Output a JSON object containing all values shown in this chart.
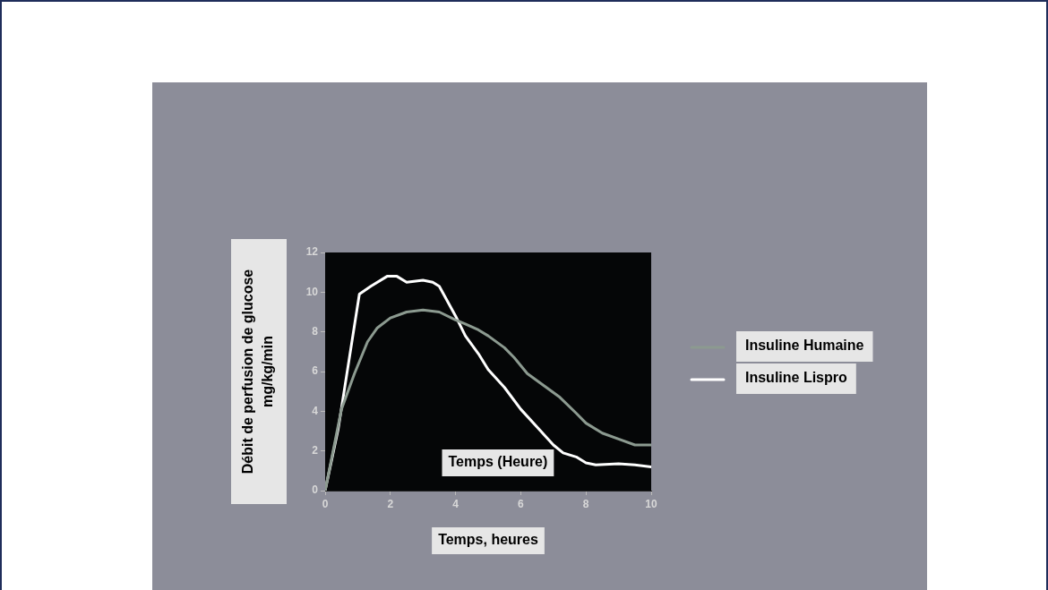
{
  "chart_data": {
    "type": "line",
    "xlabel": "Temps, heures",
    "ylabel": "Débit de perfusion de glucose mg/kg/min",
    "legend": "right",
    "grid": false,
    "marker": "none",
    "line_style": "solid",
    "xlim": [
      0,
      10
    ],
    "xticks": [
      0,
      2,
      4,
      6,
      8,
      10
    ],
    "ylim": [
      0,
      12
    ],
    "yticks": [
      0,
      2,
      4,
      6,
      8,
      10,
      12
    ],
    "annotations": [
      "Temps (Heure)"
    ],
    "series": [
      {
        "name": "Insuline Humaine",
        "color": "#8c9a90",
        "x": [
          0,
          0.5,
          0.9,
          1.3,
          1.6,
          2,
          2.5,
          3,
          3.5,
          4,
          4.3,
          4.7,
          5,
          5.5,
          5.8,
          6.2,
          6.7,
          7.2,
          7.7,
          8,
          8.5,
          9,
          9.5,
          10
        ],
        "values": [
          0,
          4.1,
          5.9,
          7.5,
          8.2,
          8.7,
          9,
          9.1,
          9,
          8.6,
          8.4,
          8.1,
          7.8,
          7.2,
          6.7,
          5.9,
          5.3,
          4.7,
          3.9,
          3.4,
          2.9,
          2.6,
          2.3,
          2.3
        ]
      },
      {
        "name": "Insuline Lispro",
        "color": "#ffffff",
        "x": [
          0,
          0.4,
          1.05,
          1.4,
          1.9,
          2.2,
          2.5,
          3,
          3.3,
          3.5,
          4,
          4.3,
          4.7,
          5,
          5.5,
          6,
          6.5,
          7,
          7.3,
          7.7,
          8,
          8.3,
          9,
          9.5,
          10
        ],
        "values": [
          0,
          3.1,
          9.9,
          10.3,
          10.8,
          10.8,
          10.5,
          10.6,
          10.5,
          10.3,
          8.8,
          7.8,
          6.9,
          6.1,
          5.2,
          4.1,
          3.2,
          2.3,
          1.9,
          1.7,
          1.4,
          1.3,
          1.35,
          1.3,
          1.2
        ]
      }
    ]
  }
}
